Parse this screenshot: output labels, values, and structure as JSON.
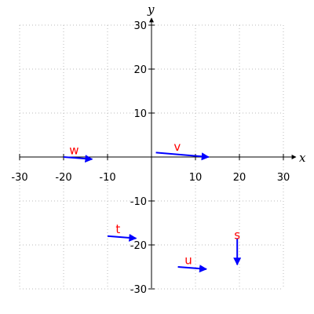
{
  "chart_data": {
    "type": "vector-field",
    "xlabel": "x",
    "ylabel": "y",
    "xlim": [
      -30,
      30
    ],
    "ylim": [
      -30,
      30
    ],
    "xticks": [
      -30,
      -20,
      -10,
      10,
      20,
      30
    ],
    "yticks": [
      30,
      20,
      10,
      -10,
      -20,
      -30
    ],
    "x_tick_labels": [
      "-30",
      "-20",
      "-10",
      "10",
      "20",
      "30"
    ],
    "y_tick_labels": [
      "30",
      "20",
      "10",
      "-10",
      "-20",
      "-30"
    ],
    "grid": true,
    "vector_color": "#0000ff",
    "label_color": "#ff0000",
    "vectors": [
      {
        "label": "w",
        "from": [
          -20,
          0
        ],
        "to": [
          -13.5,
          -0.5
        ]
      },
      {
        "label": "v",
        "from": [
          1,
          1
        ],
        "to": [
          13,
          0
        ]
      },
      {
        "label": "t",
        "from": [
          -10,
          -18
        ],
        "to": [
          -3.5,
          -18.5
        ]
      },
      {
        "label": "u",
        "from": [
          6,
          -25
        ],
        "to": [
          12.5,
          -25.5
        ]
      },
      {
        "label": "s",
        "from": [
          19.5,
          -18.5
        ],
        "to": [
          19.5,
          -24.5
        ]
      }
    ]
  }
}
